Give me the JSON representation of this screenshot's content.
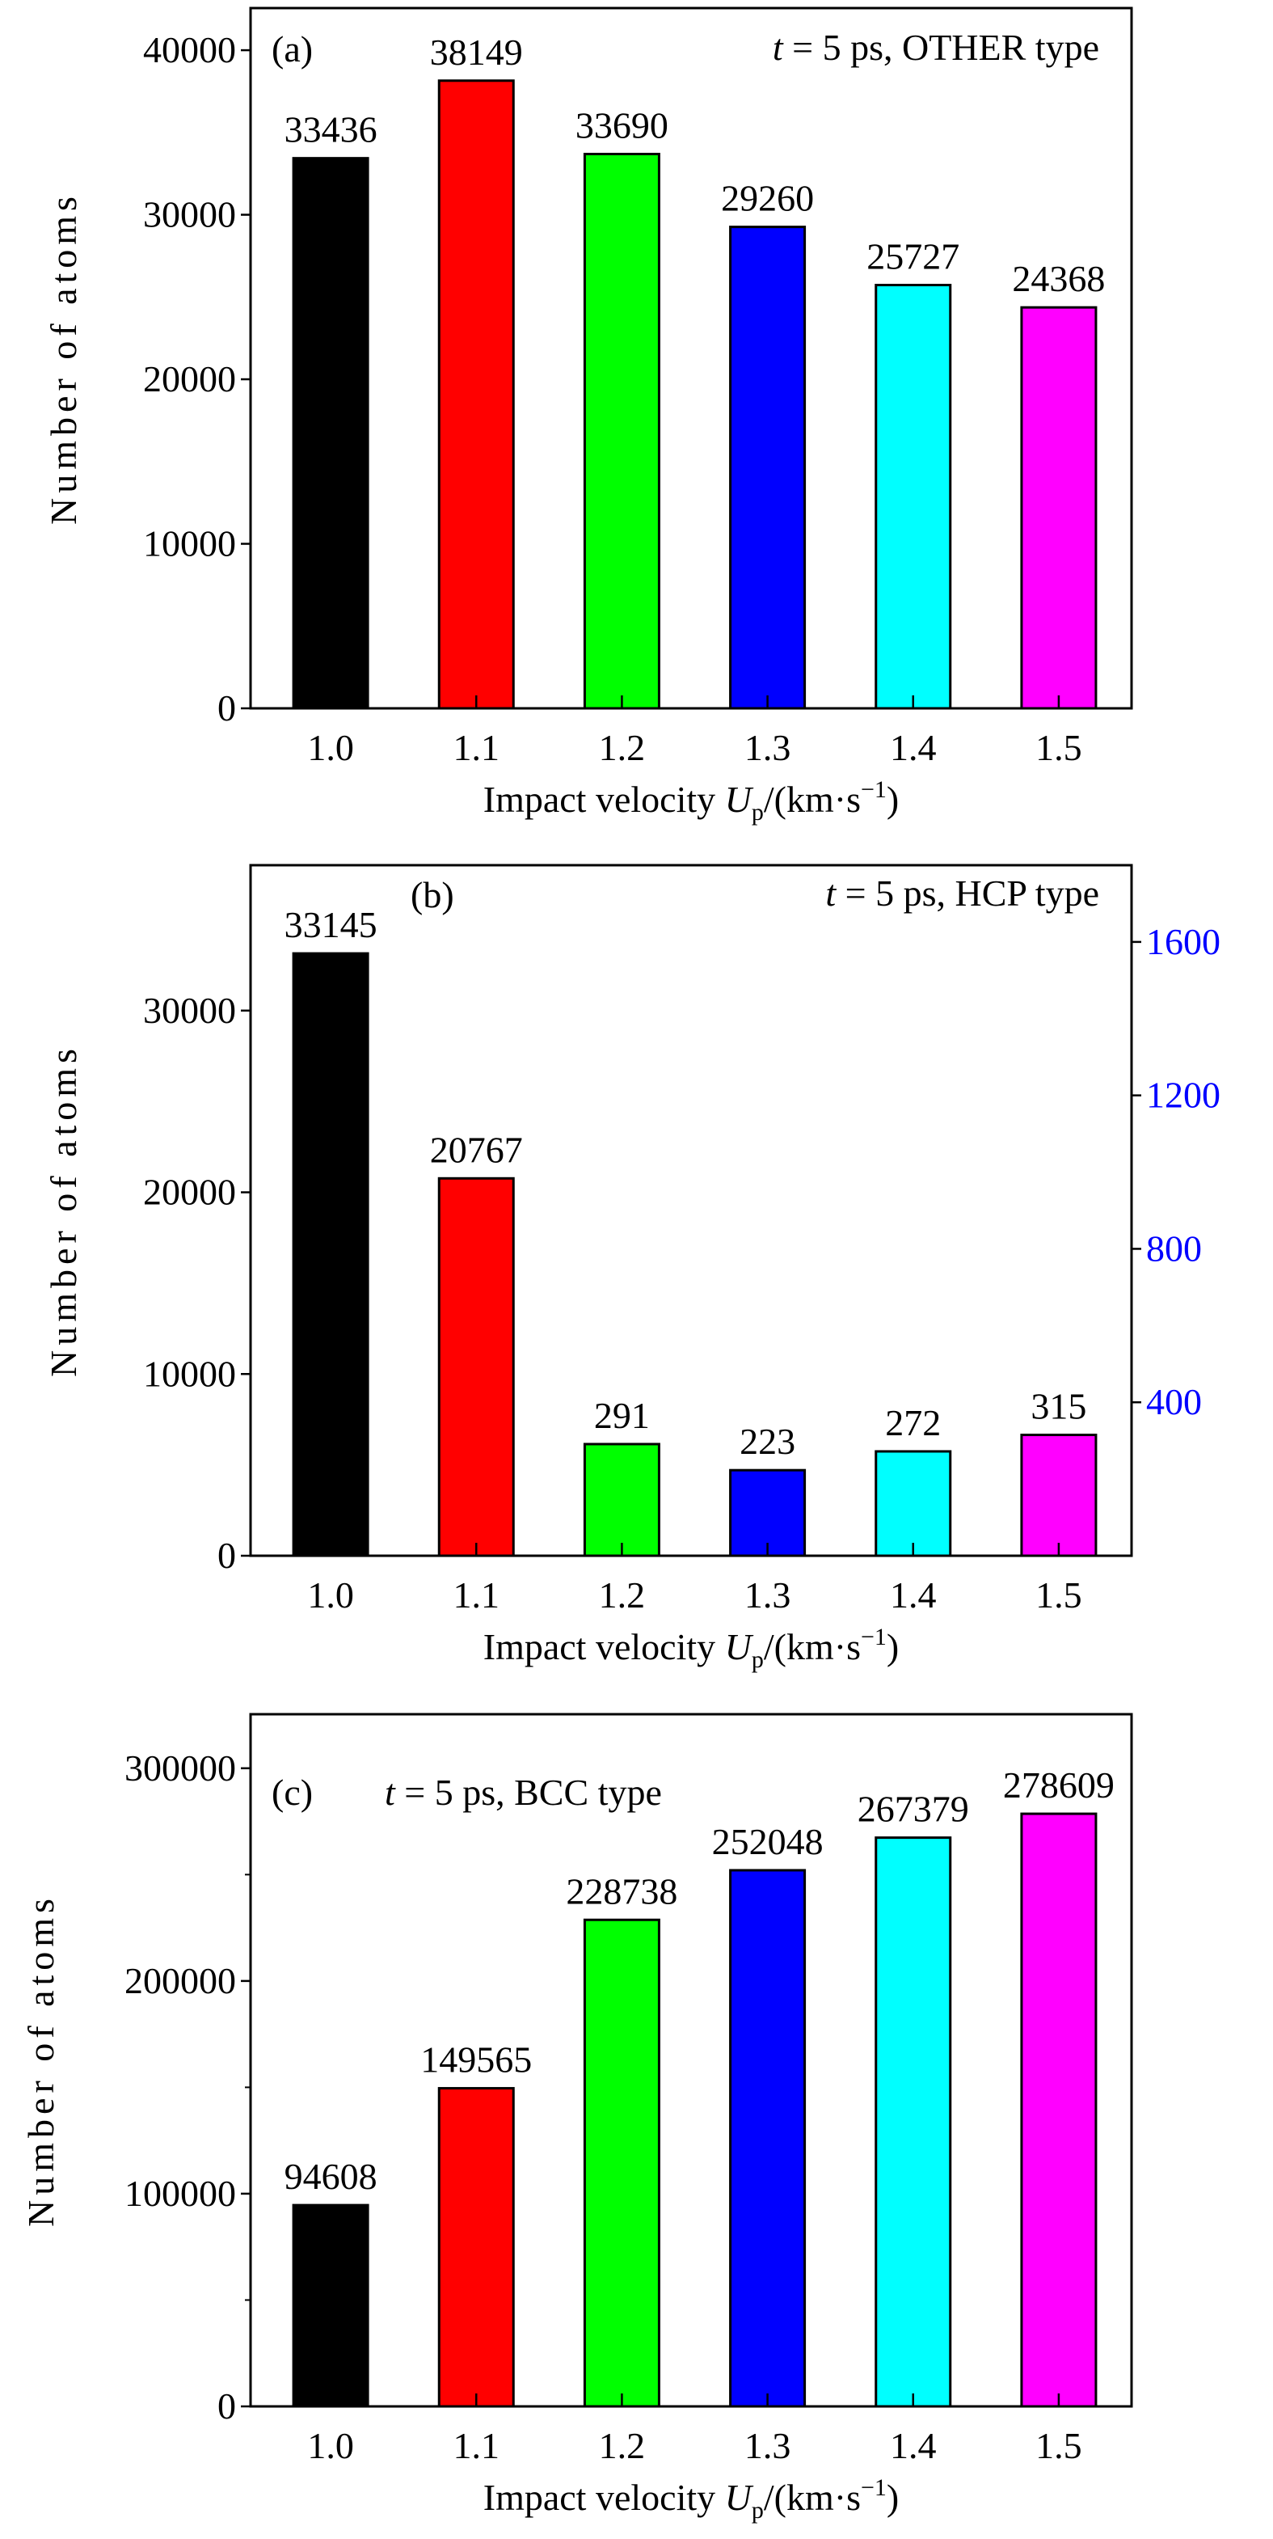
{
  "chart_data": [
    {
      "type": "bar",
      "panel_label": "(a)",
      "annotation": {
        "italic": "t",
        "rest": " = 5 ps, OTHER type"
      },
      "categories": [
        "1.0",
        "1.1",
        "1.2",
        "1.3",
        "1.4",
        "1.5"
      ],
      "values": [
        33436,
        38149,
        33690,
        29260,
        25727,
        24368
      ],
      "data_labels": [
        "33436",
        "38149",
        "33690",
        "29260",
        "25727",
        "24368"
      ],
      "colors": [
        "#000000",
        "#ff0000",
        "#00ff00",
        "#0000ff",
        "#00ffff",
        "#ff00ff"
      ],
      "ylabel": "Number of atoms",
      "xlabel": {
        "pre": "Impact velocity ",
        "var": "U",
        "sub": "p",
        "mid": "/(km·s",
        "sup": "−1",
        "post": ")"
      },
      "ylim": [
        0,
        42560
      ],
      "yticks": [
        0,
        10000,
        20000,
        30000,
        40000
      ],
      "ytick_labels": [
        "0",
        "10000",
        "20000",
        "30000",
        "40000"
      ],
      "grid": false
    },
    {
      "type": "bar",
      "panel_label": "(b)",
      "annotation": {
        "italic": "t",
        "rest": " = 5 ps, HCP type"
      },
      "categories": [
        "1.0",
        "1.1",
        "1.2",
        "1.3",
        "1.4",
        "1.5"
      ],
      "values": [
        33145,
        20767,
        291,
        223,
        272,
        315
      ],
      "value_axis": [
        "left",
        "left",
        "right",
        "right",
        "right",
        "right"
      ],
      "data_labels": [
        "33145",
        "20767",
        "291",
        "223",
        "272",
        "315"
      ],
      "colors": [
        "#000000",
        "#ff0000",
        "#00ff00",
        "#0000ff",
        "#00ffff",
        "#ff00ff"
      ],
      "ylabel": "Number of atoms",
      "xlabel": {
        "pre": "Impact velocity ",
        "var": "U",
        "sub": "p",
        "mid": "/(km·s",
        "sup": "−1",
        "post": ")"
      },
      "ylim": [
        0,
        38000
      ],
      "yticks": [
        0,
        10000,
        20000,
        30000
      ],
      "ytick_labels": [
        "0",
        "10000",
        "20000",
        "30000"
      ],
      "y2lim": [
        0,
        1800
      ],
      "y2ticks": [
        400,
        800,
        1200,
        1600
      ],
      "y2tick_labels": [
        "400",
        "800",
        "1200",
        "1600"
      ],
      "y2_color": "#0000ff",
      "grid": false
    },
    {
      "type": "bar",
      "panel_label": "(c)",
      "annotation": {
        "italic": "t",
        "rest": " = 5 ps, BCC type"
      },
      "categories": [
        "1.0",
        "1.1",
        "1.2",
        "1.3",
        "1.4",
        "1.5"
      ],
      "values": [
        94608,
        149565,
        228738,
        252048,
        267379,
        278609
      ],
      "data_labels": [
        "94608",
        "149565",
        "228738",
        "252048",
        "267379",
        "278609"
      ],
      "colors": [
        "#000000",
        "#ff0000",
        "#00ff00",
        "#0000ff",
        "#00ffff",
        "#ff00ff"
      ],
      "ylabel": "Number of atoms",
      "xlabel": {
        "pre": "Impact velocity ",
        "var": "U",
        "sub": "p",
        "mid": "/(km·s",
        "sup": "−1",
        "post": ")"
      },
      "ylim": [
        0,
        325400
      ],
      "yticks": [
        0,
        100000,
        200000,
        300000
      ],
      "ytick_labels": [
        "0",
        "100000",
        "200000",
        "300000"
      ],
      "yminor_ticks": [
        50000,
        150000,
        250000
      ],
      "grid": false
    }
  ]
}
